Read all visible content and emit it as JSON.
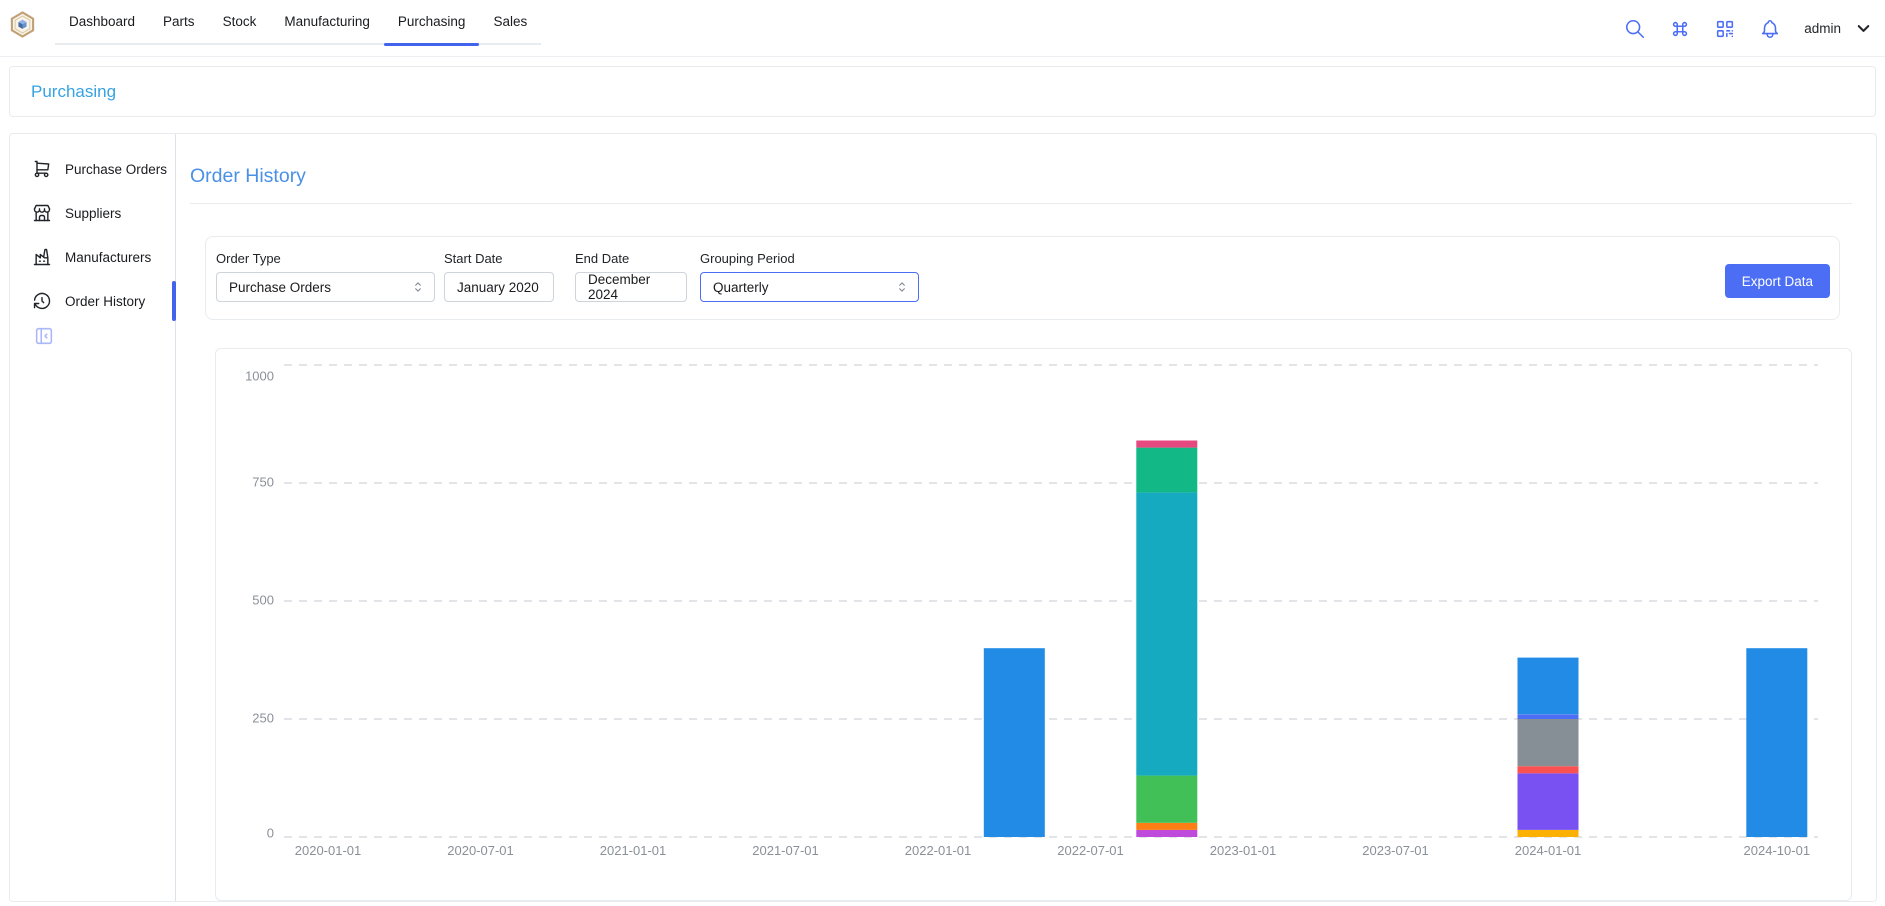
{
  "colors": {
    "accent_indigo": "#4c6ef5",
    "tab_underline": "#4263eb",
    "breadcrumb_link": "#36a3e0",
    "section_title": "#4a90e5",
    "border_light": "#e9ecef",
    "axis_text": "#8a9099"
  },
  "navbar": {
    "tabs": [
      {
        "label": "Dashboard"
      },
      {
        "label": "Parts"
      },
      {
        "label": "Stock"
      },
      {
        "label": "Manufacturing"
      },
      {
        "label": "Purchasing"
      },
      {
        "label": "Sales"
      }
    ],
    "active_tab": "Purchasing",
    "icons": [
      "search",
      "command",
      "qr-code",
      "notification-bell",
      "chevron-down"
    ],
    "username": "admin"
  },
  "breadcrumb": {
    "title": "Purchasing"
  },
  "sidebar": {
    "items": [
      {
        "label": "Purchase Orders",
        "icon": "shopping-cart",
        "active": false
      },
      {
        "label": "Suppliers",
        "icon": "building-store",
        "active": false
      },
      {
        "label": "Manufacturers",
        "icon": "building-factory",
        "active": false
      },
      {
        "label": "Order History",
        "icon": "history-clock",
        "active": true
      }
    ],
    "collapse_icon": "sidebar-collapse"
  },
  "main": {
    "title": "Order History",
    "filters": {
      "order_type": {
        "label": "Order Type",
        "value": "Purchase Orders"
      },
      "start_date": {
        "label": "Start Date",
        "value": "January 2020"
      },
      "end_date": {
        "label": "End Date",
        "value": "December 2024"
      },
      "grouping_period": {
        "label": "Grouping Period",
        "value": "Quarterly"
      }
    },
    "export_button": "Export Data"
  },
  "chart_data": {
    "type": "bar",
    "stacked": true,
    "title": "",
    "xlabel": "",
    "ylabel": "",
    "legend": "none",
    "grid": "dashed-horizontal",
    "x_axis": {
      "type": "time",
      "tick_labels": [
        "2020-01-01",
        "2020-07-01",
        "2021-01-01",
        "2021-07-01",
        "2022-01-01",
        "2022-07-01",
        "2023-01-01",
        "2023-07-01",
        "2024-01-01",
        "2024-10-01"
      ]
    },
    "y_axis": {
      "min": 0,
      "max": 1000,
      "ticks": [
        0,
        250,
        500,
        750,
        1000
      ]
    },
    "bars": [
      {
        "date": "2022-04-01",
        "total": 400,
        "segments": [
          {
            "color": "#228be6",
            "value": 400
          }
        ]
      },
      {
        "date": "2022-10-01",
        "total": 840,
        "segments": [
          {
            "color": "#be4bdb",
            "value": 15
          },
          {
            "color": "#fd7e14",
            "value": 15
          },
          {
            "color": "#40c057",
            "value": 100
          },
          {
            "color": "#15aabf",
            "value": 600
          },
          {
            "color": "#12b886",
            "value": 95
          },
          {
            "color": "#e64980",
            "value": 15
          }
        ]
      },
      {
        "date": "2024-01-01",
        "total": 380,
        "segments": [
          {
            "color": "#fab005",
            "value": 15
          },
          {
            "color": "#7950f2",
            "value": 120
          },
          {
            "color": "#fa5252",
            "value": 15
          },
          {
            "color": "#868e96",
            "value": 100
          },
          {
            "color": "#4c6ef5",
            "value": 10
          },
          {
            "color": "#228be6",
            "value": 120
          }
        ]
      },
      {
        "date": "2024-10-01",
        "total": 400,
        "segments": [
          {
            "color": "#228be6",
            "value": 400
          }
        ]
      }
    ]
  }
}
